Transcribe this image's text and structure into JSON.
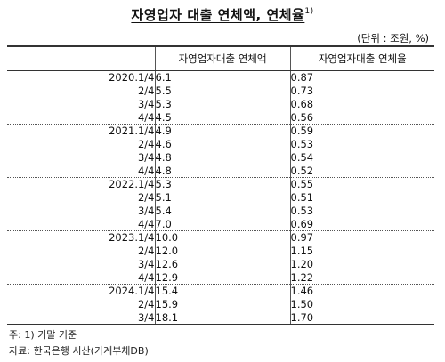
{
  "title": {
    "text": "자영업자 대출 연체액, 연체율",
    "superscript": "1)"
  },
  "unit": "(단위 : 조원, %)",
  "table": {
    "headers": [
      "",
      "자영업자대출 연체액",
      "자영업자대출 연체율"
    ],
    "rows": [
      {
        "period": "2020.1/4",
        "amount": "6.1",
        "rate": "0.87",
        "group_start": true
      },
      {
        "period": "2/4",
        "amount": "5.5",
        "rate": "0.73",
        "group_start": false
      },
      {
        "period": "3/4",
        "amount": "5.3",
        "rate": "0.68",
        "group_start": false
      },
      {
        "period": "4/4",
        "amount": "4.5",
        "rate": "0.56",
        "group_start": false
      },
      {
        "period": "2021.1/4",
        "amount": "4.9",
        "rate": "0.59",
        "group_start": true
      },
      {
        "period": "2/4",
        "amount": "4.6",
        "rate": "0.53",
        "group_start": false
      },
      {
        "period": "3/4",
        "amount": "4.8",
        "rate": "0.54",
        "group_start": false
      },
      {
        "period": "4/4",
        "amount": "4.8",
        "rate": "0.52",
        "group_start": false
      },
      {
        "period": "2022.1/4",
        "amount": "5.3",
        "rate": "0.55",
        "group_start": true
      },
      {
        "period": "2/4",
        "amount": "5.1",
        "rate": "0.51",
        "group_start": false
      },
      {
        "period": "3/4",
        "amount": "5.4",
        "rate": "0.53",
        "group_start": false
      },
      {
        "period": "4/4",
        "amount": "7.0",
        "rate": "0.69",
        "group_start": false
      },
      {
        "period": "2023.1/4",
        "amount": "10.0",
        "rate": "0.97",
        "group_start": true
      },
      {
        "period": "2/4",
        "amount": "12.0",
        "rate": "1.15",
        "group_start": false
      },
      {
        "period": "3/4",
        "amount": "12.6",
        "rate": "1.20",
        "group_start": false
      },
      {
        "period": "4/4",
        "amount": "12.9",
        "rate": "1.22",
        "group_start": false
      },
      {
        "period": "2024.1/4",
        "amount": "15.4",
        "rate": "1.46",
        "group_start": true
      },
      {
        "period": "2/4",
        "amount": "15.9",
        "rate": "1.50",
        "group_start": false
      },
      {
        "period": "3/4",
        "amount": "18.1",
        "rate": "1.70",
        "group_start": false
      }
    ]
  },
  "footnotes": [
    "주: 1) 기말 기준",
    "자료: 한국은행 시산(가계부채DB)"
  ]
}
